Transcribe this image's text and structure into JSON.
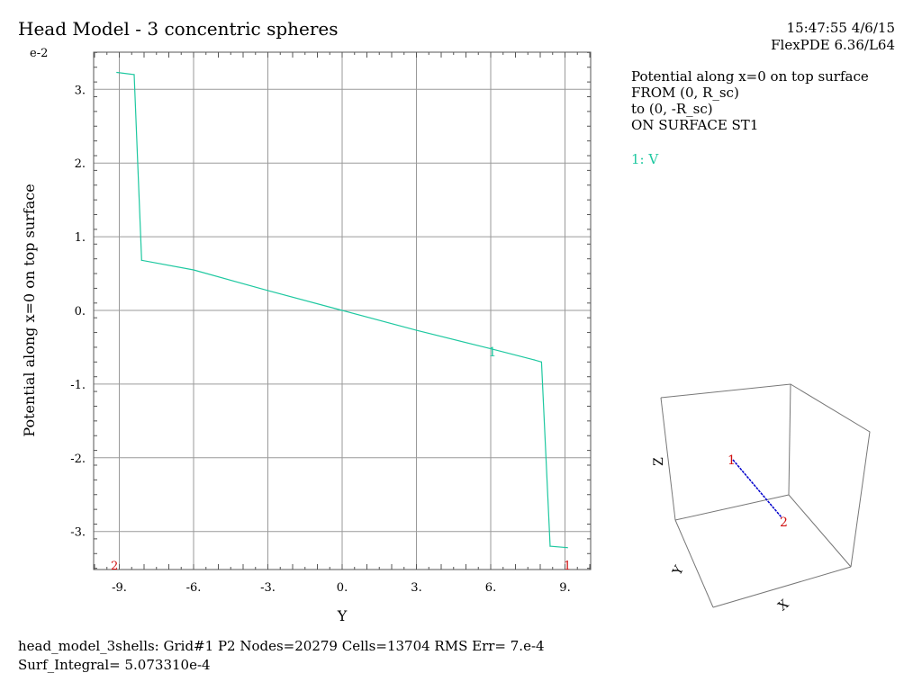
{
  "header": {
    "title": "Head Model - 3 concentric spheres",
    "timestamp": "15:47:55 4/6/15",
    "version": "FlexPDE 6.36/L64"
  },
  "info": {
    "lines": [
      "Potential along x=0 on top surface",
      "FROM (0, R_sc)",
      "to (0, -R_sc)",
      "ON SURFACE ST1"
    ],
    "legend": "1: V"
  },
  "footer": {
    "line1": "head_model_3shells:  Grid#1  P2  Nodes=20279 Cells=13704 RMS Err= 7.e-4",
    "line2": "Surf_Integral=   5.073310e-4"
  },
  "colors": {
    "series": "#1ec8a0",
    "marker": "#d01010",
    "path": "#0000cc",
    "grid": "#9a9a9a"
  },
  "chart_data": {
    "type": "line",
    "ylabel": "Potential along x=0 on top surface",
    "xlabel": "Y",
    "y_exponent_label": "e-2",
    "xlim": [
      -10,
      10
    ],
    "ylim": [
      -3.5,
      3.5
    ],
    "xticks": [
      -9,
      -6,
      -3,
      0,
      3,
      6,
      9
    ],
    "xtick_labels": [
      "-9.",
      "-6.",
      "-3.",
      "0.",
      "3.",
      "6.",
      "9."
    ],
    "yticks": [
      3,
      2,
      1,
      0,
      -1,
      -2,
      -3
    ],
    "ytick_labels": [
      "3.",
      "2.",
      "1.",
      "0.",
      "-1.",
      "-2.",
      "-3."
    ],
    "grid": true,
    "series": [
      {
        "name": "V",
        "x": [
          -9.1,
          -8.4,
          -8.1,
          -6.0,
          -3.0,
          0.0,
          3.0,
          6.0,
          7.75,
          8.05,
          8.4,
          9.1
        ],
        "y": [
          3.23,
          3.2,
          0.68,
          0.55,
          0.27,
          0.0,
          -0.27,
          -0.52,
          -0.67,
          -0.7,
          -3.2,
          -3.22
        ]
      }
    ],
    "curve_label": "1",
    "curve_label_x": 6.05,
    "curve_label_y": -0.55,
    "endpoint_labels": [
      "2",
      "1"
    ]
  },
  "orientation_box": {
    "axes": [
      "Z",
      "Y",
      "X"
    ],
    "points": [
      "1",
      "2"
    ]
  }
}
